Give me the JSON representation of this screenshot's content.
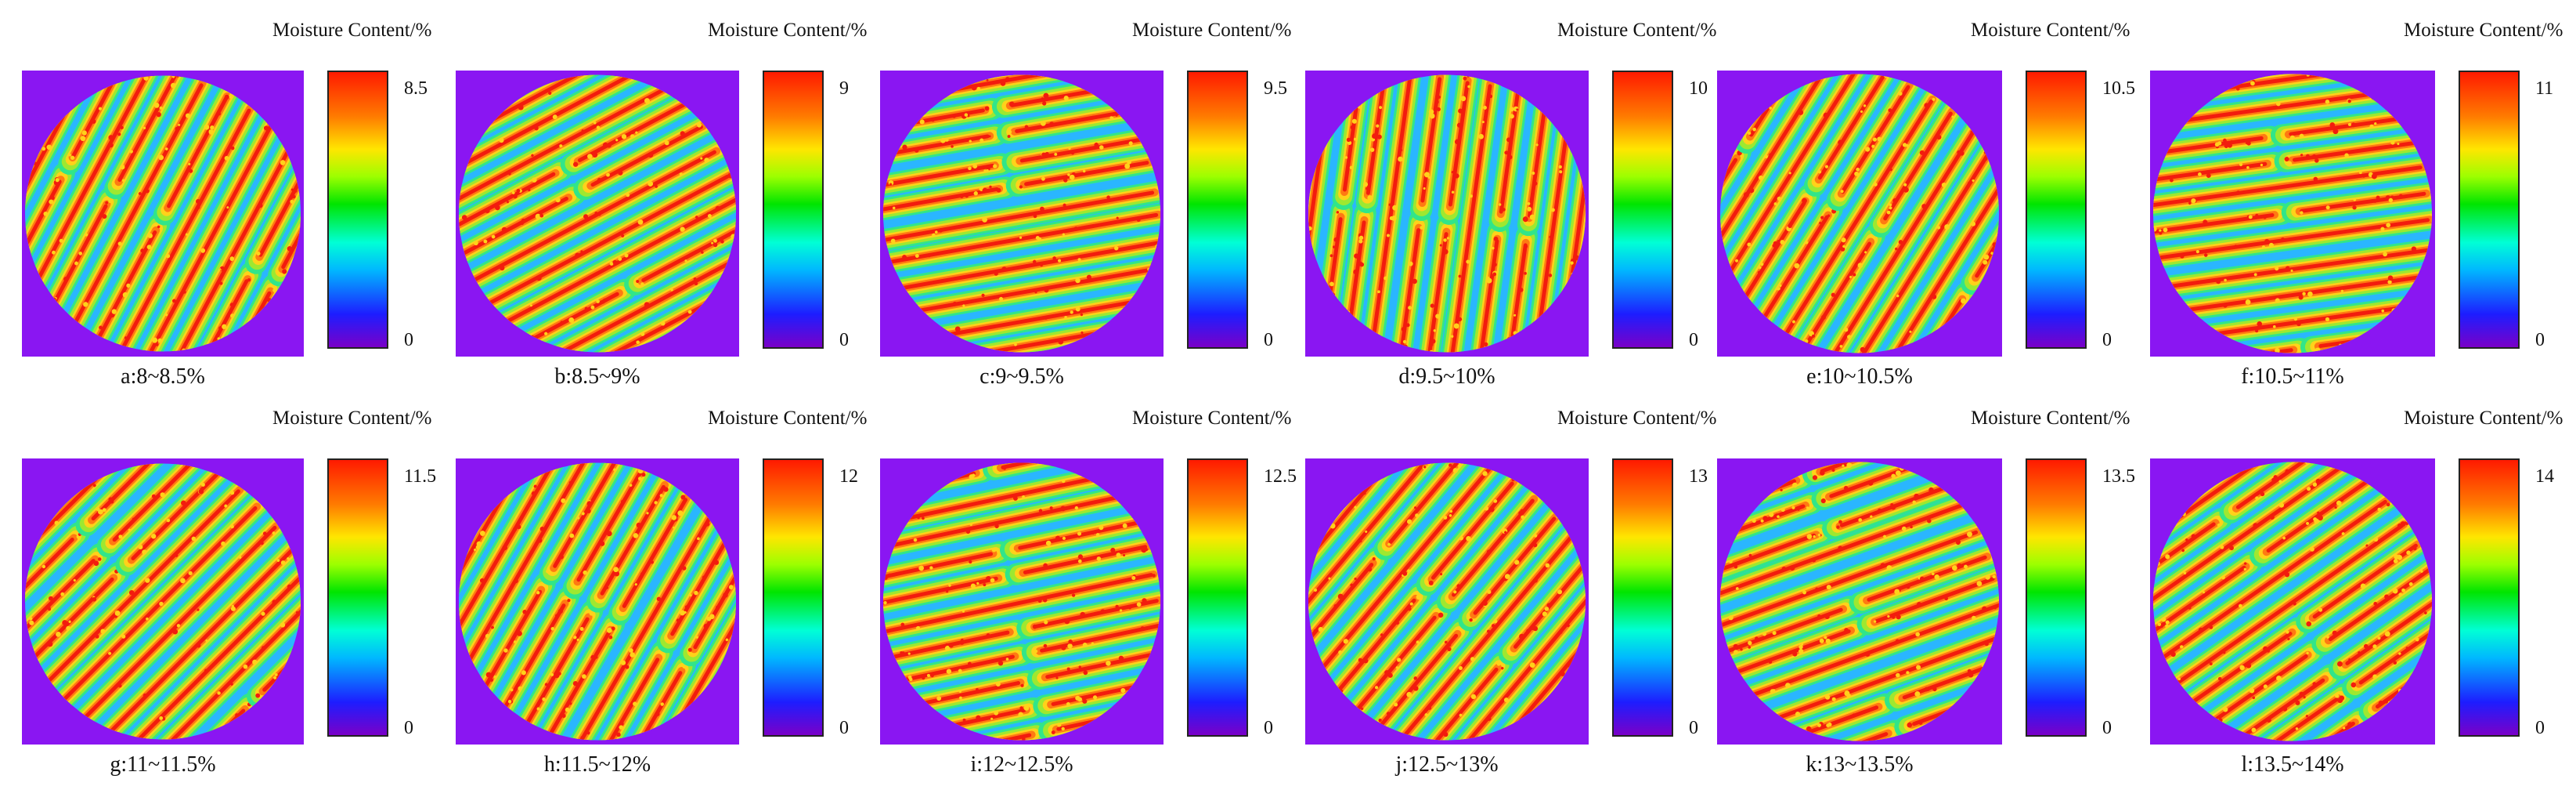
{
  "legend_title": "Moisture Content/%",
  "panels": [
    {
      "caption": "a:8~8.5%",
      "scale_max": "8.5",
      "scale_min": "0",
      "stripe_angle": 62
    },
    {
      "caption": "b:8.5~9%",
      "scale_max": "9",
      "scale_min": "0",
      "stripe_angle": 28
    },
    {
      "caption": "c:9~9.5%",
      "scale_max": "9.5",
      "scale_min": "0",
      "stripe_angle": 10
    },
    {
      "caption": "d:9.5~10%",
      "scale_max": "10",
      "scale_min": "0",
      "stripe_angle": 82
    },
    {
      "caption": "e:10~10.5%",
      "scale_max": "10.5",
      "scale_min": "0",
      "stripe_angle": 58
    },
    {
      "caption": "f:10.5~11%",
      "scale_max": "11",
      "scale_min": "0",
      "stripe_angle": 8
    },
    {
      "caption": "g:11~11.5%",
      "scale_max": "11.5",
      "scale_min": "0",
      "stripe_angle": 45
    },
    {
      "caption": "h:11.5~12%",
      "scale_max": "12",
      "scale_min": "0",
      "stripe_angle": 60
    },
    {
      "caption": "i:12~12.5%",
      "scale_max": "12.5",
      "scale_min": "0",
      "stripe_angle": 12
    },
    {
      "caption": "j:12.5~13%",
      "scale_max": "13",
      "scale_min": "0",
      "stripe_angle": 50
    },
    {
      "caption": "k:13~13.5%",
      "scale_max": "13.5",
      "scale_min": "0",
      "stripe_angle": 20
    },
    {
      "caption": "l:13.5~14%",
      "scale_max": "14",
      "scale_min": "0",
      "stripe_angle": 35
    }
  ],
  "colors": {
    "background": "#8a16f2",
    "edge": "#2ab6ff",
    "ring": "#31e58a",
    "body": "#9ee830",
    "mid": "#ffd21a",
    "core": "#ff7a12",
    "hot": "#f21c0e"
  }
}
